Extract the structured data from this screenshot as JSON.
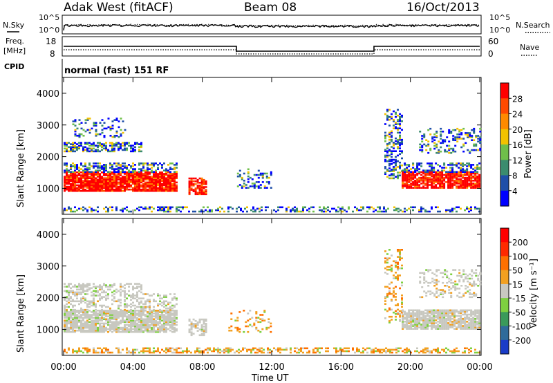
{
  "header": {
    "radar": "Adak West (fitACF)",
    "beam": "Beam 08",
    "date": "16/Oct/2013"
  },
  "top_panels": {
    "nsky_label": "N.Sky",
    "nsearch_label": "N.Search",
    "noise_ticks": [
      "10^5",
      "10^0"
    ],
    "freq_label_1": "Freq.",
    "freq_label_2": "[MHz]",
    "freq_ticks": [
      "18",
      "8"
    ],
    "nave_label": "Nave",
    "nave_ticks": [
      "60",
      "0"
    ],
    "cpid_label": "CPID",
    "cpid_value": "normal (fast) 151 RF"
  },
  "chart_data": [
    {
      "type": "heatmap",
      "title": "Power",
      "ylabel": "Slant Range [km]",
      "xlabel": "Time UT",
      "x_ticks": [
        "00:00",
        "04:00",
        "08:00",
        "12:00",
        "16:00",
        "20:00",
        "00:00"
      ],
      "y_ticks": [
        "1000",
        "2000",
        "3000",
        "4000"
      ],
      "ylim": [
        180,
        4500
      ],
      "colorbar": {
        "label": "Power [dB]",
        "ticks": [
          "4",
          "8",
          "12",
          "16",
          "20",
          "24",
          "28"
        ],
        "colors": [
          "#0000ff",
          "#1f4fa8",
          "#3b8c6e",
          "#6fbf4a",
          "#f2c200",
          "#ff8a00",
          "#ff4a00",
          "#ff0000"
        ]
      }
    },
    {
      "type": "heatmap",
      "title": "Velocity",
      "ylabel": "Slant Range [km]",
      "xlabel": "Time UT",
      "x_ticks": [
        "00:00",
        "04:00",
        "08:00",
        "12:00",
        "16:00",
        "20:00",
        "00:00"
      ],
      "y_ticks": [
        "1000",
        "2000",
        "3000",
        "4000"
      ],
      "ylim": [
        180,
        4500
      ],
      "colorbar": {
        "label": "Velocity [m s⁻¹]",
        "ticks": [
          "200",
          "100",
          "50",
          "15",
          "-15",
          "-50",
          "-100",
          "-200"
        ],
        "colors": [
          "#1a3cc8",
          "#2f6b9a",
          "#3a9a5a",
          "#7ed040",
          "#c8c8c0",
          "#f2a020",
          "#ff7000",
          "#ff2a00",
          "#ff0000"
        ]
      }
    }
  ],
  "footer": {
    "xaxis_label": "Time UT"
  }
}
